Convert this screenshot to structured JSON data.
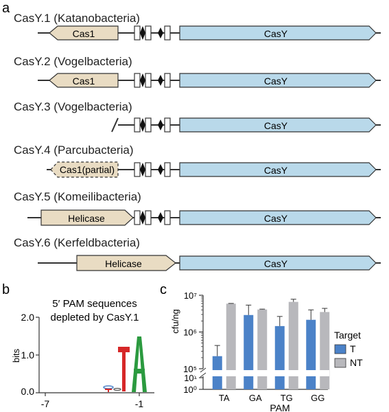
{
  "colors": {
    "cas_gene": "#e9dcc3",
    "casy": "#b9d9ea",
    "outline": "#333333",
    "bar_T": "#4b82c8",
    "bar_NT": "#b8b8bc",
    "logo_T": "#d62728",
    "logo_A": "#2b9a3f"
  },
  "panel_a": {
    "label": "a",
    "loci": [
      {
        "name": "CasY.1 (Katanobacteria)",
        "upstream_gene": "Cas1",
        "casy_label": "CasY"
      },
      {
        "name": "CasY.2 (Vogelbacteria)",
        "upstream_gene": "Cas1",
        "casy_label": "CasY"
      },
      {
        "name": "CasY.3 (Vogelbacteria)",
        "upstream_gene": "",
        "casy_label": "CasY"
      },
      {
        "name": "CasY.4 (Parcubacteria)",
        "upstream_gene": "Cas1(partial)",
        "casy_label": "CasY"
      },
      {
        "name": "CasY.5 (Komeilibacteria)",
        "upstream_gene": "Helicase",
        "casy_label": "CasY"
      },
      {
        "name": "CasY.6 (Kerfeldbacteria)",
        "upstream_gene": "Helicase",
        "casy_label": "CasY"
      }
    ]
  },
  "panel_b": {
    "label": "b",
    "title_line1": "5′ PAM sequences",
    "title_line2": "depleted by CasY.1",
    "ylabel": "bits",
    "yticks": [
      "2.0",
      "1.0",
      "0.0"
    ],
    "xticks": [
      "-7",
      "-1"
    ],
    "logo_letters": [
      "T",
      "A"
    ]
  },
  "panel_c": {
    "label": "c",
    "chart_data": {
      "type": "bar",
      "categories": [
        "TA",
        "GA",
        "TG",
        "GG"
      ],
      "series": [
        {
          "name": "T",
          "values": [
            220000,
            2900000,
            1450000,
            2150000
          ],
          "errors_upper": [
            430000,
            5400000,
            2650000,
            4000000
          ]
        },
        {
          "name": "NT",
          "values": [
            5900000,
            4100000,
            6600000,
            3500000
          ],
          "errors_upper": [
            6000000,
            4200000,
            7800000,
            4400000
          ]
        }
      ],
      "xlabel": "PAM",
      "ylabel": "cfu/ng",
      "yscale": "log",
      "axis_break": true,
      "upper_yticks": [
        "10⁵",
        "10⁶",
        "10⁷"
      ],
      "lower_yticks": [
        "10⁰",
        "10¹"
      ],
      "legend_title": "Target",
      "legend_position": "right"
    }
  }
}
